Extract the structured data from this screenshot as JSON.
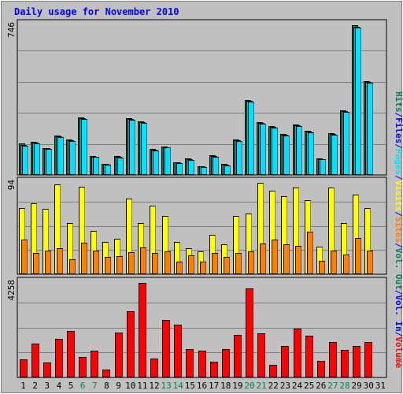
{
  "chart_data": {
    "type": "bar",
    "title": "Daily usage for November 2010",
    "categories": [
      "1",
      "2",
      "3",
      "4",
      "5",
      "6",
      "7",
      "8",
      "9",
      "10",
      "11",
      "12",
      "13",
      "14",
      "15",
      "16",
      "17",
      "18",
      "19",
      "20",
      "21",
      "22",
      "23",
      "24",
      "25",
      "26",
      "27",
      "28",
      "29",
      "30",
      "31"
    ],
    "weekend_days": [
      "6",
      "7",
      "13",
      "14",
      "20",
      "21",
      "27",
      "28"
    ],
    "right_legend": [
      {
        "name": "Hits",
        "color": "#00805c"
      },
      {
        "name": "/",
        "color": "#0000ff"
      },
      {
        "name": "Files",
        "color": "#0000ff"
      },
      {
        "name": "/",
        "color": "#0000ff"
      },
      {
        "name": "Pages",
        "color": "#00e0ff"
      },
      {
        "name": "/",
        "color": "#0000ff"
      },
      {
        "name": "Visits",
        "color": "#ffff00"
      },
      {
        "name": "/",
        "color": "#0000ff"
      },
      {
        "name": "Sites",
        "color": "#ff8000"
      },
      {
        "name": "/",
        "color": "#0000ff"
      },
      {
        "name": "Vol. Out",
        "color": "#00805c"
      },
      {
        "name": "/",
        "color": "#0000ff"
      },
      {
        "name": "Vol. In",
        "color": "#0000ff"
      },
      {
        "name": "/",
        "color": "#0000ff"
      },
      {
        "name": "Volume",
        "color": "#ff0000"
      }
    ],
    "panels": [
      {
        "id": "hits",
        "ymax_label": "746",
        "ylim": [
          0,
          746
        ],
        "series": [
          {
            "name": "Hits",
            "color": "#00805c",
            "values": [
              152,
              160,
              132,
              192,
              172,
              284,
              92,
              52,
              90,
              282,
              266,
              128,
              140,
              60,
              80,
              40,
              96,
              50,
              172,
              372,
              260,
              240,
              200,
              248,
              216,
              80,
              206,
              320,
              746,
              466,
              0
            ]
          },
          {
            "name": "Files",
            "color": "#00c0c0",
            "values": [
              148,
              158,
              130,
              190,
              168,
              280,
              88,
              50,
              88,
              278,
              262,
              124,
              136,
              58,
              76,
              38,
              92,
              46,
              170,
              368,
              256,
              236,
              196,
              244,
              212,
              76,
              202,
              316,
              740,
              462,
              0
            ]
          },
          {
            "name": "Pages",
            "color": "#00e0ff",
            "values": [
              144,
              154,
              128,
              186,
              166,
              276,
              86,
              48,
              84,
              274,
              258,
              120,
              134,
              56,
              72,
              36,
              88,
              44,
              166,
              364,
              252,
              232,
              192,
              240,
              210,
              74,
              198,
              312,
              736,
              458,
              0
            ]
          }
        ]
      },
      {
        "id": "visits",
        "ymax_label": "94",
        "ylim": [
          0,
          94
        ],
        "series": [
          {
            "name": "Visits",
            "color": "#ffff00",
            "values": [
              68,
              73,
              67,
              92,
              52,
              90,
              44,
              33,
              36,
              78,
              52,
              70,
              60,
              33,
              26,
              23,
              40,
              30,
              60,
              62,
              94,
              86,
              80,
              89,
              76,
              28,
              89,
              52,
              82,
              68,
              0
            ]
          },
          {
            "name": "Sites",
            "color": "#ff8000",
            "values": [
              35,
              21,
              24,
              26,
              15,
              32,
              24,
              17,
              18,
              22,
              27,
              21,
              23,
              12,
              19,
              12,
              21,
              17,
              21,
              23,
              31,
              35,
              30,
              29,
              43,
              13,
              24,
              20,
              37,
              24,
              0
            ]
          }
        ]
      },
      {
        "id": "volume",
        "ymax_label": "4258",
        "ylim": [
          0,
          4258
        ],
        "series": [
          {
            "name": "Volume",
            "color": "#ff0000",
            "values": [
              780,
              1500,
              660,
              1720,
              2070,
              880,
              1170,
              310,
              2000,
              2970,
              4250,
              820,
              2590,
              2360,
              1250,
              1170,
              670,
              1260,
              1880,
              4000,
              1970,
              550,
              1380,
              2180,
              1850,
              710,
              1560,
              1230,
              1410,
              1570,
              0
            ]
          }
        ]
      }
    ]
  }
}
